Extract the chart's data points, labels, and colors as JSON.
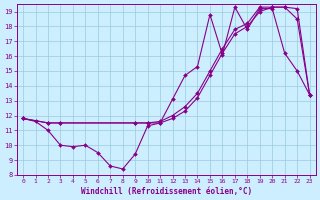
{
  "xlabel": "Windchill (Refroidissement éolien,°C)",
  "xlim": [
    -0.5,
    23.5
  ],
  "ylim": [
    8,
    19.5
  ],
  "xticks": [
    0,
    1,
    2,
    3,
    4,
    5,
    6,
    7,
    8,
    9,
    10,
    11,
    12,
    13,
    14,
    15,
    16,
    17,
    18,
    19,
    20,
    21,
    22,
    23
  ],
  "yticks": [
    8,
    9,
    10,
    11,
    12,
    13,
    14,
    15,
    16,
    17,
    18,
    19
  ],
  "background_color": "#cceeff",
  "grid_color": "#99ccdd",
  "line_color": "#880088",
  "line1_x": [
    0,
    1,
    2,
    3,
    4,
    5,
    6,
    7,
    8,
    9,
    10,
    11,
    12,
    13,
    14,
    15,
    16,
    17,
    18,
    19,
    20,
    21,
    22,
    23
  ],
  "line1_y": [
    11.8,
    11.6,
    11.0,
    10.0,
    9.9,
    10.0,
    9.5,
    8.6,
    8.4,
    9.4,
    11.3,
    11.5,
    13.1,
    14.7,
    15.3,
    18.8,
    16.1,
    19.3,
    17.8,
    19.2,
    19.2,
    16.2,
    15.0,
    13.4
  ],
  "line2_x": [
    0,
    2,
    3,
    9,
    10,
    11,
    12,
    13,
    14,
    15,
    16,
    17,
    18,
    19,
    20,
    21,
    22,
    23
  ],
  "line2_y": [
    11.8,
    11.5,
    11.5,
    11.5,
    11.5,
    11.5,
    11.8,
    12.3,
    13.2,
    14.7,
    16.2,
    17.5,
    18.0,
    19.0,
    19.3,
    19.3,
    18.5,
    13.4
  ],
  "line3_x": [
    0,
    2,
    3,
    9,
    10,
    11,
    12,
    13,
    14,
    15,
    16,
    17,
    18,
    19,
    20,
    21,
    22,
    23
  ],
  "line3_y": [
    11.8,
    11.5,
    11.5,
    11.5,
    11.5,
    11.6,
    12.0,
    12.6,
    13.5,
    15.0,
    16.5,
    17.8,
    18.2,
    19.3,
    19.3,
    19.3,
    19.2,
    13.4
  ]
}
